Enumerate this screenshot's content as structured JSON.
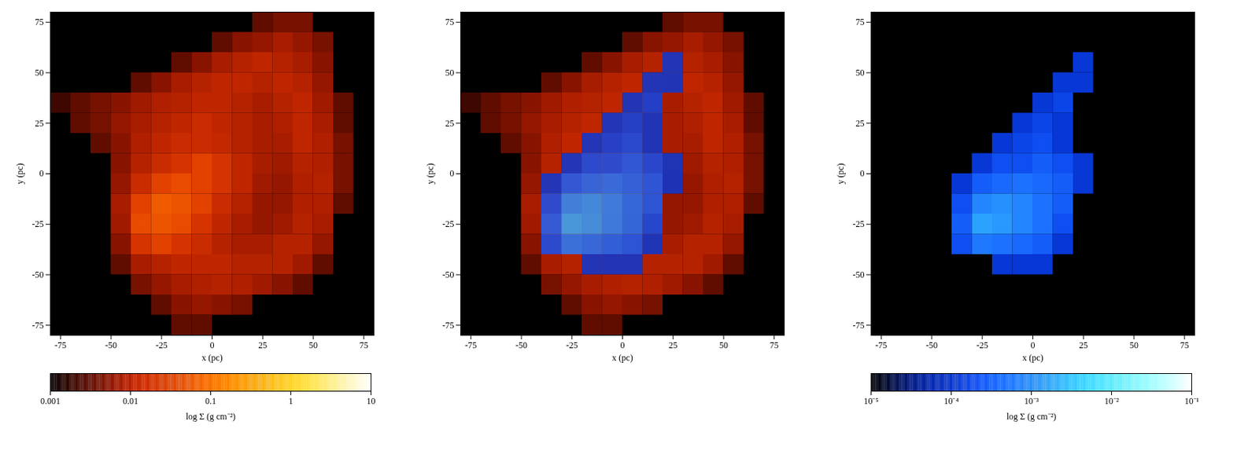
{
  "chart_data": [
    {
      "type": "heatmap",
      "x_label": "x (pc)",
      "y_label": "y (pc)",
      "xlim": [
        -80,
        80
      ],
      "ylim": [
        -80,
        80
      ],
      "xticks": [
        -75,
        -50,
        -25,
        0,
        25,
        50,
        75
      ],
      "yticks": [
        -75,
        -50,
        -25,
        0,
        25,
        50,
        75
      ],
      "cells": {
        "x": [
          -75,
          -65,
          -55,
          -45,
          -35,
          -25,
          -15,
          -5,
          5,
          15,
          25,
          35,
          45,
          55,
          65,
          75
        ],
        "y": [
          75,
          65,
          55,
          45,
          35,
          25,
          15,
          5,
          -5,
          -15,
          -25,
          -35,
          -45,
          -55,
          -65,
          -75
        ],
        "values": [
          [
            null,
            null,
            null,
            null,
            null,
            null,
            null,
            null,
            null,
            null,
            0.003,
            0.004,
            0.004,
            null,
            null,
            null
          ],
          [
            null,
            null,
            null,
            null,
            null,
            null,
            null,
            null,
            0.003,
            0.005,
            0.006,
            0.008,
            0.006,
            0.004,
            null,
            null
          ],
          [
            null,
            null,
            null,
            null,
            null,
            null,
            0.003,
            0.005,
            0.008,
            0.01,
            0.012,
            0.01,
            0.008,
            0.005,
            null,
            null
          ],
          [
            null,
            null,
            null,
            null,
            0.003,
            0.005,
            0.008,
            0.01,
            0.012,
            0.012,
            0.01,
            0.012,
            0.01,
            0.006,
            null,
            null
          ],
          [
            0.002,
            0.003,
            0.004,
            0.005,
            0.007,
            0.009,
            0.01,
            0.012,
            0.012,
            0.01,
            0.008,
            0.01,
            0.012,
            0.007,
            0.003,
            null
          ],
          [
            null,
            0.003,
            0.004,
            0.006,
            0.008,
            0.01,
            0.012,
            0.015,
            0.012,
            0.01,
            0.008,
            0.009,
            0.012,
            0.008,
            0.003,
            null
          ],
          [
            null,
            null,
            0.003,
            0.005,
            0.009,
            0.012,
            0.015,
            0.015,
            0.013,
            0.01,
            0.008,
            0.008,
            0.012,
            0.009,
            0.004,
            null
          ],
          [
            null,
            null,
            null,
            0.005,
            0.01,
            0.015,
            0.02,
            0.03,
            0.02,
            0.012,
            0.008,
            0.007,
            0.01,
            0.009,
            0.004,
            null
          ],
          [
            null,
            null,
            null,
            0.006,
            0.015,
            0.03,
            0.04,
            0.03,
            0.02,
            0.012,
            0.007,
            0.006,
            0.009,
            0.01,
            0.004,
            null
          ],
          [
            null,
            null,
            null,
            0.008,
            0.03,
            0.06,
            0.05,
            0.03,
            0.015,
            0.01,
            0.006,
            0.006,
            0.009,
            0.009,
            0.003,
            null
          ],
          [
            null,
            null,
            null,
            0.007,
            0.04,
            0.05,
            0.04,
            0.02,
            0.012,
            0.008,
            0.006,
            0.007,
            0.01,
            0.008,
            null,
            null
          ],
          [
            null,
            null,
            null,
            0.005,
            0.02,
            0.03,
            0.02,
            0.015,
            0.01,
            0.008,
            0.008,
            0.01,
            0.01,
            0.006,
            null,
            null
          ],
          [
            null,
            null,
            null,
            0.003,
            0.008,
            0.01,
            0.012,
            0.012,
            0.012,
            0.01,
            0.01,
            0.01,
            0.007,
            0.003,
            null,
            null
          ],
          [
            null,
            null,
            null,
            null,
            0.004,
            0.006,
            0.008,
            0.009,
            0.01,
            0.009,
            0.007,
            0.005,
            0.003,
            null,
            null,
            null
          ],
          [
            null,
            null,
            null,
            null,
            null,
            0.003,
            0.005,
            0.006,
            0.005,
            0.004,
            null,
            null,
            null,
            null,
            null,
            null
          ],
          [
            null,
            null,
            null,
            null,
            null,
            null,
            0.003,
            0.003,
            null,
            null,
            null,
            null,
            null,
            null,
            null,
            null
          ]
        ]
      },
      "colorbar": {
        "label": "log Σ (g cm⁻²)",
        "range": [
          0.001,
          10
        ],
        "ticks": [
          0.001,
          0.01,
          0.1,
          1,
          10
        ]
      }
    },
    {
      "type": "overlay",
      "x_label": "x (pc)",
      "y_label": "y (pc)",
      "xlim": [
        -80,
        80
      ],
      "ylim": [
        -80,
        80
      ],
      "xticks": [
        -75,
        -50,
        -25,
        0,
        25,
        50,
        75
      ],
      "yticks": [
        -75,
        -50,
        -25,
        0,
        25,
        50,
        75
      ]
    },
    {
      "type": "heatmap",
      "x_label": "x (pc)",
      "y_label": "y (pc)",
      "xlim": [
        -80,
        80
      ],
      "ylim": [
        -80,
        80
      ],
      "xticks": [
        -75,
        -50,
        -25,
        0,
        25,
        50,
        75
      ],
      "yticks": [
        -75,
        -50,
        -25,
        0,
        25,
        50,
        75
      ],
      "cells": {
        "x": [
          -75,
          -65,
          -55,
          -45,
          -35,
          -25,
          -15,
          -5,
          5,
          15,
          25,
          35,
          45,
          55,
          65,
          75
        ],
        "y": [
          75,
          65,
          55,
          45,
          35,
          25,
          15,
          5,
          -5,
          -15,
          -25,
          -35,
          -45,
          -55,
          -65,
          -75
        ],
        "values": [
          [
            null,
            null,
            null,
            null,
            null,
            null,
            null,
            null,
            null,
            null,
            null,
            null,
            null,
            null,
            null,
            null
          ],
          [
            null,
            null,
            null,
            null,
            null,
            null,
            null,
            null,
            null,
            null,
            null,
            null,
            null,
            null,
            null,
            null
          ],
          [
            null,
            null,
            null,
            null,
            null,
            null,
            null,
            null,
            null,
            null,
            0.0001,
            null,
            null,
            null,
            null,
            null
          ],
          [
            null,
            null,
            null,
            null,
            null,
            null,
            null,
            null,
            null,
            0.0001,
            0.0001,
            null,
            null,
            null,
            null,
            null
          ],
          [
            null,
            null,
            null,
            null,
            null,
            null,
            null,
            null,
            0.0001,
            0.00015,
            null,
            null,
            null,
            null,
            null,
            null
          ],
          [
            null,
            null,
            null,
            null,
            null,
            null,
            null,
            0.0001,
            0.00015,
            0.0001,
            null,
            null,
            null,
            null,
            null,
            null
          ],
          [
            null,
            null,
            null,
            null,
            null,
            null,
            0.0001,
            0.00015,
            0.0002,
            0.0001,
            null,
            null,
            null,
            null,
            null,
            null
          ],
          [
            null,
            null,
            null,
            null,
            null,
            0.0001,
            0.0002,
            0.0002,
            0.0003,
            0.0002,
            0.0001,
            null,
            null,
            null,
            null,
            null
          ],
          [
            null,
            null,
            null,
            null,
            0.0001,
            0.0003,
            0.0004,
            0.0005,
            0.0004,
            0.0003,
            0.0001,
            null,
            null,
            null,
            null,
            null
          ],
          [
            null,
            null,
            null,
            null,
            0.0002,
            0.0008,
            0.001,
            0.0008,
            0.0005,
            0.0003,
            null,
            null,
            null,
            null,
            null,
            null
          ],
          [
            null,
            null,
            null,
            null,
            0.0003,
            0.0015,
            0.0012,
            0.0008,
            0.0005,
            0.0002,
            null,
            null,
            null,
            null,
            null,
            null
          ],
          [
            null,
            null,
            null,
            null,
            0.0002,
            0.0006,
            0.0005,
            0.0004,
            0.0003,
            0.0001,
            null,
            null,
            null,
            null,
            null,
            null
          ],
          [
            null,
            null,
            null,
            null,
            null,
            null,
            0.0001,
            0.0001,
            0.0001,
            null,
            null,
            null,
            null,
            null,
            null,
            null
          ],
          [
            null,
            null,
            null,
            null,
            null,
            null,
            null,
            null,
            null,
            null,
            null,
            null,
            null,
            null,
            null,
            null
          ],
          [
            null,
            null,
            null,
            null,
            null,
            null,
            null,
            null,
            null,
            null,
            null,
            null,
            null,
            null,
            null,
            null
          ],
          [
            null,
            null,
            null,
            null,
            null,
            null,
            null,
            null,
            null,
            null,
            null,
            null,
            null,
            null,
            null,
            null
          ]
        ]
      },
      "colorbar": {
        "label": "log Σ (g cm⁻²)",
        "range": [
          1e-05,
          0.1
        ],
        "ticks": [
          {
            "value": 1e-05,
            "label": "10⁻⁵"
          },
          {
            "value": 0.0001,
            "label": "10⁻⁴"
          },
          {
            "value": 0.001,
            "label": "10⁻³"
          },
          {
            "value": 0.01,
            "label": "10⁻²"
          },
          {
            "value": 0.1,
            "label": "10⁻¹"
          }
        ]
      }
    }
  ]
}
